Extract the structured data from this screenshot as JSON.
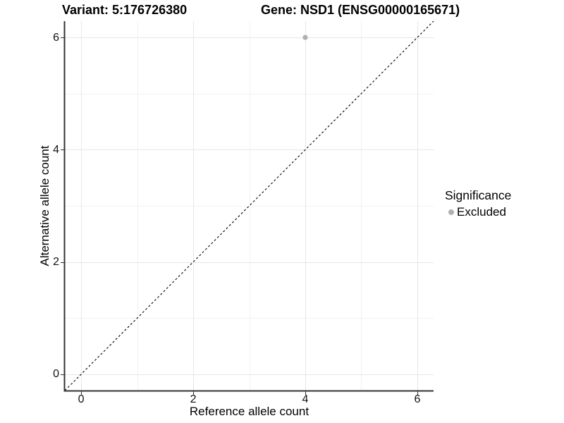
{
  "chart_data": {
    "type": "scatter",
    "title_left": "Variant: 5:176726380",
    "title_right": "Gene: NSD1 (ENSG00000165671)",
    "xlabel": "Reference allele count",
    "ylabel": "Alternative allele count",
    "xlim": [
      -0.29,
      6.29
    ],
    "ylim": [
      -0.29,
      6.29
    ],
    "xticks": [
      0,
      2,
      4,
      6
    ],
    "yticks": [
      0,
      2,
      4,
      6
    ],
    "minor_gridlines_x": [
      1,
      3,
      5
    ],
    "minor_gridlines_y": [
      1,
      3,
      5
    ],
    "grid": "on",
    "points": [
      {
        "x": 4,
        "y": 6,
        "series": "Excluded"
      }
    ],
    "identity_line": {
      "style": "dashed",
      "equation": "y = x",
      "color": "#000000"
    },
    "series": [
      {
        "name": "Excluded",
        "color": "#b0b0b0"
      }
    ],
    "legend": {
      "title": "Significance",
      "position": "right",
      "items": [
        {
          "label": "Excluded",
          "color": "#b0b0b0"
        }
      ]
    }
  },
  "colors": {
    "background": "#ffffff",
    "axis_line": "#333333",
    "tick_text": "#111111",
    "grid_major": "#e6e6e6",
    "grid_minor": "#f2f2f2",
    "title_text": "#000000"
  }
}
